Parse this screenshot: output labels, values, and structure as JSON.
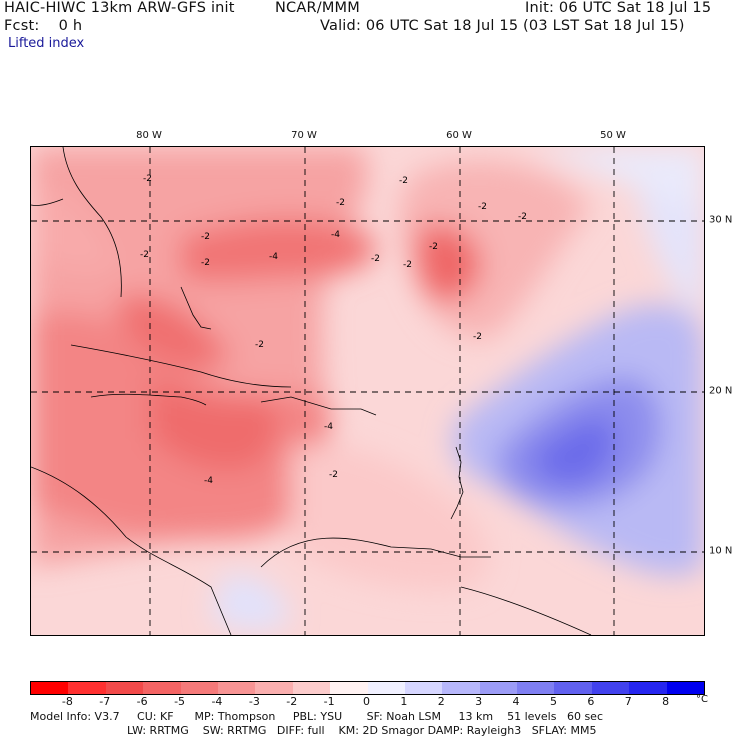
{
  "header": {
    "model": "HAIC-HIWC 13km ARW-GFS init",
    "org": "NCAR/MMM",
    "init": "Init: 06 UTC Sat 18 Jul 15",
    "fcst": "Fcst:    0 h",
    "valid": "Valid: 06 UTC Sat 18 Jul 15 (03 LST Sat 18 Jul 15)",
    "field": "Lifted index"
  },
  "map": {
    "lon_labels": [
      "80 W",
      "70 W",
      "60 W",
      "50 W"
    ],
    "lat_labels": [
      "30 N",
      "20 N",
      "10 N"
    ],
    "contour_labels": [
      "-2",
      "-2",
      "-2",
      "-2",
      "-2",
      "-2",
      "-2",
      "-2",
      "-2",
      "-2",
      "-4",
      "-4",
      "-4",
      "-4",
      "-2",
      "-2",
      "-2",
      "-2"
    ]
  },
  "colorbar": {
    "ticks": [
      "-8",
      "-7",
      "-6",
      "-5",
      "-4",
      "-3",
      "-2",
      "-1",
      "0",
      "1",
      "2",
      "3",
      "4",
      "5",
      "6",
      "7",
      "8"
    ],
    "unit": "°C",
    "colors": [
      "#ff0000",
      "#ff3030",
      "#f24a4a",
      "#f46464",
      "#f57a7a",
      "#f79494",
      "#faafaf",
      "#fccccc",
      "#fff2f2",
      "#f0f0ff",
      "#d6d6ff",
      "#b7b7fb",
      "#9c9cf6",
      "#7f7ff2",
      "#6161ef",
      "#4242ee",
      "#2626f0",
      "#0000f0"
    ]
  },
  "footer": {
    "line1": "Model Info: V3.7     CU: KF      MP: Thompson     PBL: YSU       SF: Noah LSM     13 km    51 levels   60 sec",
    "line2": "LW: RRTMG    SW: RRTMG   DIFF: full    KM: 2D Smagor DAMP: Rayleigh3   SFLAY: MM5"
  }
}
